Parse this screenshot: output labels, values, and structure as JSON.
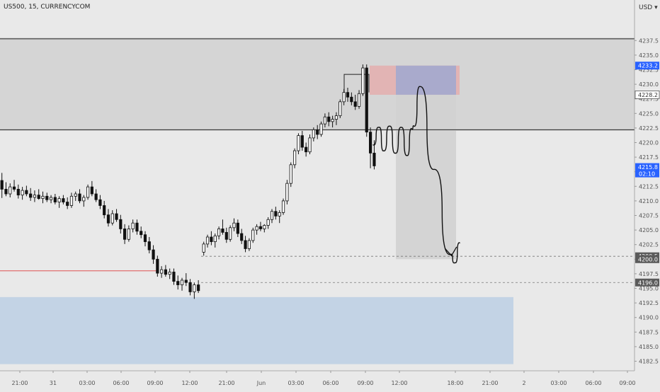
{
  "chart_data": {
    "type": "candlestick",
    "title": "US500, 15, CURRENCYCOM",
    "currency_label": "USD",
    "y_ticks": [
      "4182.5",
      "4185.0",
      "4187.5",
      "4190.0",
      "4192.5",
      "4195.0",
      "4197.5",
      "4200.0",
      "4202.5",
      "4205.0",
      "4207.5",
      "4210.0",
      "4212.5",
      "4215.0",
      "4217.5",
      "4220.0",
      "4222.5",
      "4225.0",
      "4227.5",
      "4230.0",
      "4232.5",
      "4235.0",
      "4237.5"
    ],
    "x_ticks": [
      "21:00",
      "31",
      "03:00",
      "06:00",
      "09:00",
      "12:00",
      "21:00",
      "Jun",
      "03:00",
      "06:00",
      "09:00",
      "12:00",
      "18:00",
      "21:00",
      "2",
      "03:00",
      "06:00",
      "09:00"
    ],
    "price_labels": [
      {
        "value": "4233.2",
        "style": "blue"
      },
      {
        "value": "4228.2",
        "style": "outline"
      },
      {
        "value": "4215.8",
        "time": "02:10",
        "style": "blue"
      },
      {
        "value": "4200.5",
        "style": "dark"
      },
      {
        "value": "4200.0",
        "style": "dark"
      },
      {
        "value": "4196.0",
        "style": "dark"
      }
    ],
    "zones": [
      {
        "name": "supply-zone",
        "from": 4222.0,
        "to": 4238.0,
        "color": "#d5d5d5"
      },
      {
        "name": "demand-zone",
        "from": 4182.0,
        "to": 4193.5,
        "color": "#c3d3e5"
      },
      {
        "name": "stop-loss-zone",
        "from": 4228.2,
        "to": 4233.2,
        "color": "#e2b4b4"
      },
      {
        "name": "entry-zone",
        "from": 4228.2,
        "to": 4233.2,
        "color": "#a9aacc"
      },
      {
        "name": "target-zone",
        "from": 4200.0,
        "to": 4228.2,
        "color": "#d1d1d1"
      }
    ],
    "levels": [
      4237.8,
      4222.2,
      4200.5,
      4196.0,
      4198.0
    ],
    "candles": [
      [
        4213.5,
        4214.8,
        4210.5,
        4212.0
      ],
      [
        4212.0,
        4213.2,
        4210.8,
        4211.2
      ],
      [
        4211.2,
        4213.0,
        4210.6,
        4212.4
      ],
      [
        4212.4,
        4213.6,
        4211.6,
        4212.0
      ],
      [
        4212.0,
        4212.8,
        4210.4,
        4211.0
      ],
      [
        4211.0,
        4212.4,
        4210.2,
        4211.8
      ],
      [
        4211.8,
        4212.6,
        4210.8,
        4211.2
      ],
      [
        4211.2,
        4212.2,
        4210.0,
        4210.6
      ],
      [
        4210.6,
        4211.8,
        4209.8,
        4211.0
      ],
      [
        4211.0,
        4212.0,
        4210.2,
        4210.4
      ],
      [
        4210.4,
        4211.6,
        4209.6,
        4210.8
      ],
      [
        4210.8,
        4211.4,
        4209.8,
        4210.2
      ],
      [
        4210.2,
        4211.0,
        4209.6,
        4210.6
      ],
      [
        4210.6,
        4211.2,
        4209.4,
        4209.8
      ],
      [
        4209.8,
        4210.8,
        4208.8,
        4210.4
      ],
      [
        4210.4,
        4211.0,
        4209.4,
        4209.8
      ],
      [
        4209.8,
        4210.6,
        4208.6,
        4209.2
      ],
      [
        4209.2,
        4211.4,
        4208.8,
        4210.8
      ],
      [
        4210.8,
        4211.6,
        4210.0,
        4211.2
      ],
      [
        4211.2,
        4212.0,
        4209.6,
        4210.0
      ],
      [
        4210.0,
        4211.0,
        4209.0,
        4210.6
      ],
      [
        4210.6,
        4212.8,
        4210.2,
        4212.4
      ],
      [
        4212.4,
        4213.4,
        4210.8,
        4211.2
      ],
      [
        4211.2,
        4212.0,
        4209.8,
        4210.2
      ],
      [
        4210.2,
        4211.0,
        4208.6,
        4209.2
      ],
      [
        4209.2,
        4210.0,
        4207.0,
        4207.6
      ],
      [
        4207.6,
        4208.6,
        4205.6,
        4206.2
      ],
      [
        4206.2,
        4208.4,
        4205.8,
        4207.8
      ],
      [
        4207.8,
        4208.6,
        4206.4,
        4206.8
      ],
      [
        4206.8,
        4207.6,
        4204.4,
        4205.2
      ],
      [
        4205.2,
        4206.0,
        4202.6,
        4203.4
      ],
      [
        4203.4,
        4205.8,
        4203.0,
        4205.2
      ],
      [
        4205.2,
        4206.8,
        4204.6,
        4206.2
      ],
      [
        4206.2,
        4206.8,
        4204.2,
        4204.8
      ],
      [
        4204.8,
        4205.6,
        4203.6,
        4204.2
      ],
      [
        4204.2,
        4204.8,
        4202.2,
        4203.0
      ],
      [
        4203.0,
        4203.8,
        4201.0,
        4201.6
      ],
      [
        4201.6,
        4202.4,
        4199.2,
        4200.0
      ],
      [
        4200.0,
        4200.6,
        4197.0,
        4197.6
      ],
      [
        4197.6,
        4198.8,
        4196.8,
        4198.2
      ],
      [
        4198.2,
        4199.0,
        4197.0,
        4197.4
      ],
      [
        4197.4,
        4198.4,
        4196.6,
        4197.8
      ],
      [
        4197.8,
        4198.4,
        4195.6,
        4196.2
      ],
      [
        4196.2,
        4197.2,
        4194.8,
        4195.6
      ],
      [
        4195.6,
        4196.8,
        4194.6,
        4196.4
      ],
      [
        4196.4,
        4197.6,
        4195.4,
        4196.0
      ],
      [
        4196.0,
        4196.6,
        4193.8,
        4194.4
      ],
      [
        4194.4,
        4196.0,
        4193.2,
        4195.6
      ],
      [
        4195.6,
        4196.4,
        4194.2,
        4194.6
      ],
      [
        4201.2,
        4203.0,
        4200.6,
        4202.6
      ],
      [
        4202.6,
        4204.2,
        4202.0,
        4203.8
      ],
      [
        4203.8,
        4204.8,
        4202.4,
        4203.0
      ],
      [
        4203.0,
        4204.4,
        4202.0,
        4204.0
      ],
      [
        4204.0,
        4205.6,
        4203.4,
        4205.2
      ],
      [
        4205.2,
        4206.8,
        4204.2,
        4204.6
      ],
      [
        4204.6,
        4205.4,
        4202.8,
        4203.4
      ],
      [
        4203.4,
        4205.8,
        4203.0,
        4205.4
      ],
      [
        4205.4,
        4207.0,
        4204.8,
        4206.2
      ],
      [
        4206.2,
        4206.8,
        4203.8,
        4204.4
      ],
      [
        4204.4,
        4205.2,
        4202.6,
        4203.2
      ],
      [
        4203.2,
        4204.0,
        4201.2,
        4201.8
      ],
      [
        4201.8,
        4203.6,
        4201.4,
        4203.2
      ],
      [
        4203.2,
        4205.4,
        4202.8,
        4205.0
      ],
      [
        4205.0,
        4206.0,
        4204.2,
        4205.6
      ],
      [
        4205.6,
        4206.4,
        4204.8,
        4205.2
      ],
      [
        4205.2,
        4206.0,
        4204.6,
        4205.8
      ],
      [
        4205.8,
        4207.2,
        4205.2,
        4206.8
      ],
      [
        4206.8,
        4208.6,
        4206.2,
        4208.2
      ],
      [
        4208.2,
        4209.0,
        4206.8,
        4207.4
      ],
      [
        4207.4,
        4208.4,
        4206.2,
        4208.0
      ],
      [
        4208.0,
        4210.4,
        4207.6,
        4210.0
      ],
      [
        4210.0,
        4213.6,
        4209.4,
        4213.0
      ],
      [
        4213.0,
        4216.6,
        4212.4,
        4216.2
      ],
      [
        4216.2,
        4219.0,
        4215.6,
        4218.6
      ],
      [
        4218.6,
        4221.6,
        4218.0,
        4221.2
      ],
      [
        4221.2,
        4222.0,
        4218.6,
        4219.2
      ],
      [
        4219.2,
        4220.0,
        4217.6,
        4218.4
      ],
      [
        4218.4,
        4221.4,
        4218.0,
        4220.8
      ],
      [
        4220.8,
        4222.6,
        4220.2,
        4222.2
      ],
      [
        4222.2,
        4223.0,
        4220.6,
        4221.4
      ],
      [
        4221.4,
        4223.6,
        4221.0,
        4223.2
      ],
      [
        4223.2,
        4225.0,
        4222.6,
        4224.4
      ],
      [
        4224.4,
        4225.2,
        4222.8,
        4223.6
      ],
      [
        4223.6,
        4224.6,
        4222.6,
        4224.0
      ],
      [
        4224.0,
        4225.2,
        4223.0,
        4224.6
      ],
      [
        4224.6,
        4227.4,
        4224.2,
        4227.0
      ],
      [
        4227.0,
        4229.2,
        4226.4,
        4228.6
      ],
      [
        4228.6,
        4229.4,
        4227.0,
        4227.8
      ],
      [
        4227.8,
        4228.6,
        4226.4,
        4227.0
      ],
      [
        4227.0,
        4228.2,
        4225.6,
        4226.2
      ],
      [
        4226.2,
        4229.0,
        4225.8,
        4228.4
      ],
      [
        4228.4,
        4233.4,
        4228.0,
        4232.8
      ],
      [
        4232.8,
        4233.4,
        4221.0,
        4221.8
      ],
      [
        4221.8,
        4222.6,
        4215.6,
        4218.2
      ],
      [
        4218.2,
        4220.4,
        4215.4,
        4216.0
      ]
    ],
    "projection_path": [
      [
        4219.6,
        0
      ],
      [
        4222.6,
        5
      ],
      [
        4218.6,
        9
      ],
      [
        4222.8,
        14
      ],
      [
        4218.2,
        19
      ],
      [
        4222.6,
        24
      ],
      [
        4217.8,
        29
      ],
      [
        4222.4,
        33
      ],
      [
        4222.8,
        35
      ],
      [
        4229.6,
        40
      ],
      [
        4215.4,
        52
      ],
      [
        4200.8,
        66
      ],
      [
        4199.4,
        70
      ],
      [
        4202.8,
        74
      ]
    ],
    "arrow_tip": [
      4200.6,
      67
    ]
  }
}
